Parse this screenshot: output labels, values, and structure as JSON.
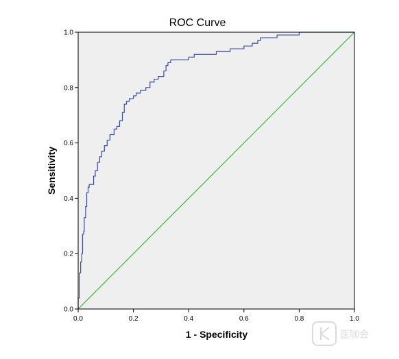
{
  "chart_data": {
    "type": "line",
    "title": "ROC Curve",
    "xlabel": "1 - Specificity",
    "ylabel": "Sensitivity",
    "xlim": [
      0,
      1
    ],
    "ylim": [
      0,
      1
    ],
    "x_ticks": [
      "0.0",
      "0.2",
      "0.4",
      "0.6",
      "0.8",
      "1.0"
    ],
    "y_ticks": [
      "0.0",
      "0.2",
      "0.4",
      "0.6",
      "0.8",
      "1.0"
    ],
    "grid": false,
    "legend": "none",
    "plot_background": "#efefef",
    "series": [
      {
        "color": "#3b4fa0",
        "step": true,
        "points": [
          [
            0.0,
            0.0
          ],
          [
            0.0,
            0.04
          ],
          [
            0.004,
            0.04
          ],
          [
            0.004,
            0.13
          ],
          [
            0.009,
            0.13
          ],
          [
            0.009,
            0.17
          ],
          [
            0.013,
            0.17
          ],
          [
            0.013,
            0.2
          ],
          [
            0.016,
            0.2
          ],
          [
            0.016,
            0.27
          ],
          [
            0.02,
            0.27
          ],
          [
            0.02,
            0.28
          ],
          [
            0.022,
            0.28
          ],
          [
            0.022,
            0.33
          ],
          [
            0.027,
            0.33
          ],
          [
            0.027,
            0.37
          ],
          [
            0.031,
            0.37
          ],
          [
            0.031,
            0.42
          ],
          [
            0.036,
            0.42
          ],
          [
            0.036,
            0.44
          ],
          [
            0.04,
            0.44
          ],
          [
            0.04,
            0.45
          ],
          [
            0.056,
            0.45
          ],
          [
            0.056,
            0.48
          ],
          [
            0.062,
            0.48
          ],
          [
            0.062,
            0.5
          ],
          [
            0.07,
            0.5
          ],
          [
            0.07,
            0.53
          ],
          [
            0.078,
            0.53
          ],
          [
            0.078,
            0.55
          ],
          [
            0.085,
            0.55
          ],
          [
            0.085,
            0.57
          ],
          [
            0.095,
            0.57
          ],
          [
            0.095,
            0.59
          ],
          [
            0.105,
            0.59
          ],
          [
            0.105,
            0.61
          ],
          [
            0.115,
            0.61
          ],
          [
            0.115,
            0.63
          ],
          [
            0.13,
            0.63
          ],
          [
            0.13,
            0.65
          ],
          [
            0.14,
            0.65
          ],
          [
            0.14,
            0.66
          ],
          [
            0.15,
            0.66
          ],
          [
            0.15,
            0.68
          ],
          [
            0.16,
            0.68
          ],
          [
            0.16,
            0.71
          ],
          [
            0.167,
            0.71
          ],
          [
            0.167,
            0.74
          ],
          [
            0.175,
            0.74
          ],
          [
            0.175,
            0.75
          ],
          [
            0.185,
            0.75
          ],
          [
            0.185,
            0.76
          ],
          [
            0.2,
            0.76
          ],
          [
            0.2,
            0.77
          ],
          [
            0.21,
            0.77
          ],
          [
            0.21,
            0.78
          ],
          [
            0.225,
            0.78
          ],
          [
            0.225,
            0.79
          ],
          [
            0.245,
            0.79
          ],
          [
            0.245,
            0.8
          ],
          [
            0.26,
            0.8
          ],
          [
            0.26,
            0.82
          ],
          [
            0.275,
            0.82
          ],
          [
            0.275,
            0.83
          ],
          [
            0.29,
            0.83
          ],
          [
            0.29,
            0.84
          ],
          [
            0.31,
            0.84
          ],
          [
            0.31,
            0.86
          ],
          [
            0.318,
            0.86
          ],
          [
            0.318,
            0.88
          ],
          [
            0.325,
            0.88
          ],
          [
            0.325,
            0.89
          ],
          [
            0.335,
            0.89
          ],
          [
            0.335,
            0.9
          ],
          [
            0.4,
            0.9
          ],
          [
            0.4,
            0.91
          ],
          [
            0.42,
            0.91
          ],
          [
            0.42,
            0.92
          ],
          [
            0.5,
            0.92
          ],
          [
            0.5,
            0.93
          ],
          [
            0.55,
            0.93
          ],
          [
            0.55,
            0.94
          ],
          [
            0.6,
            0.94
          ],
          [
            0.6,
            0.95
          ],
          [
            0.63,
            0.95
          ],
          [
            0.63,
            0.96
          ],
          [
            0.65,
            0.96
          ],
          [
            0.65,
            0.97
          ],
          [
            0.66,
            0.97
          ],
          [
            0.66,
            0.98
          ],
          [
            0.72,
            0.98
          ],
          [
            0.72,
            0.99
          ],
          [
            0.8,
            0.99
          ],
          [
            0.8,
            1.0
          ],
          [
            1.0,
            1.0
          ]
        ]
      },
      {
        "color": "#3cb93c",
        "step": false,
        "points": [
          [
            0.0,
            0.0
          ],
          [
            1.0,
            1.0
          ]
        ]
      }
    ]
  },
  "watermark": {
    "text": "医咖会",
    "color": "#d0d0d0"
  }
}
